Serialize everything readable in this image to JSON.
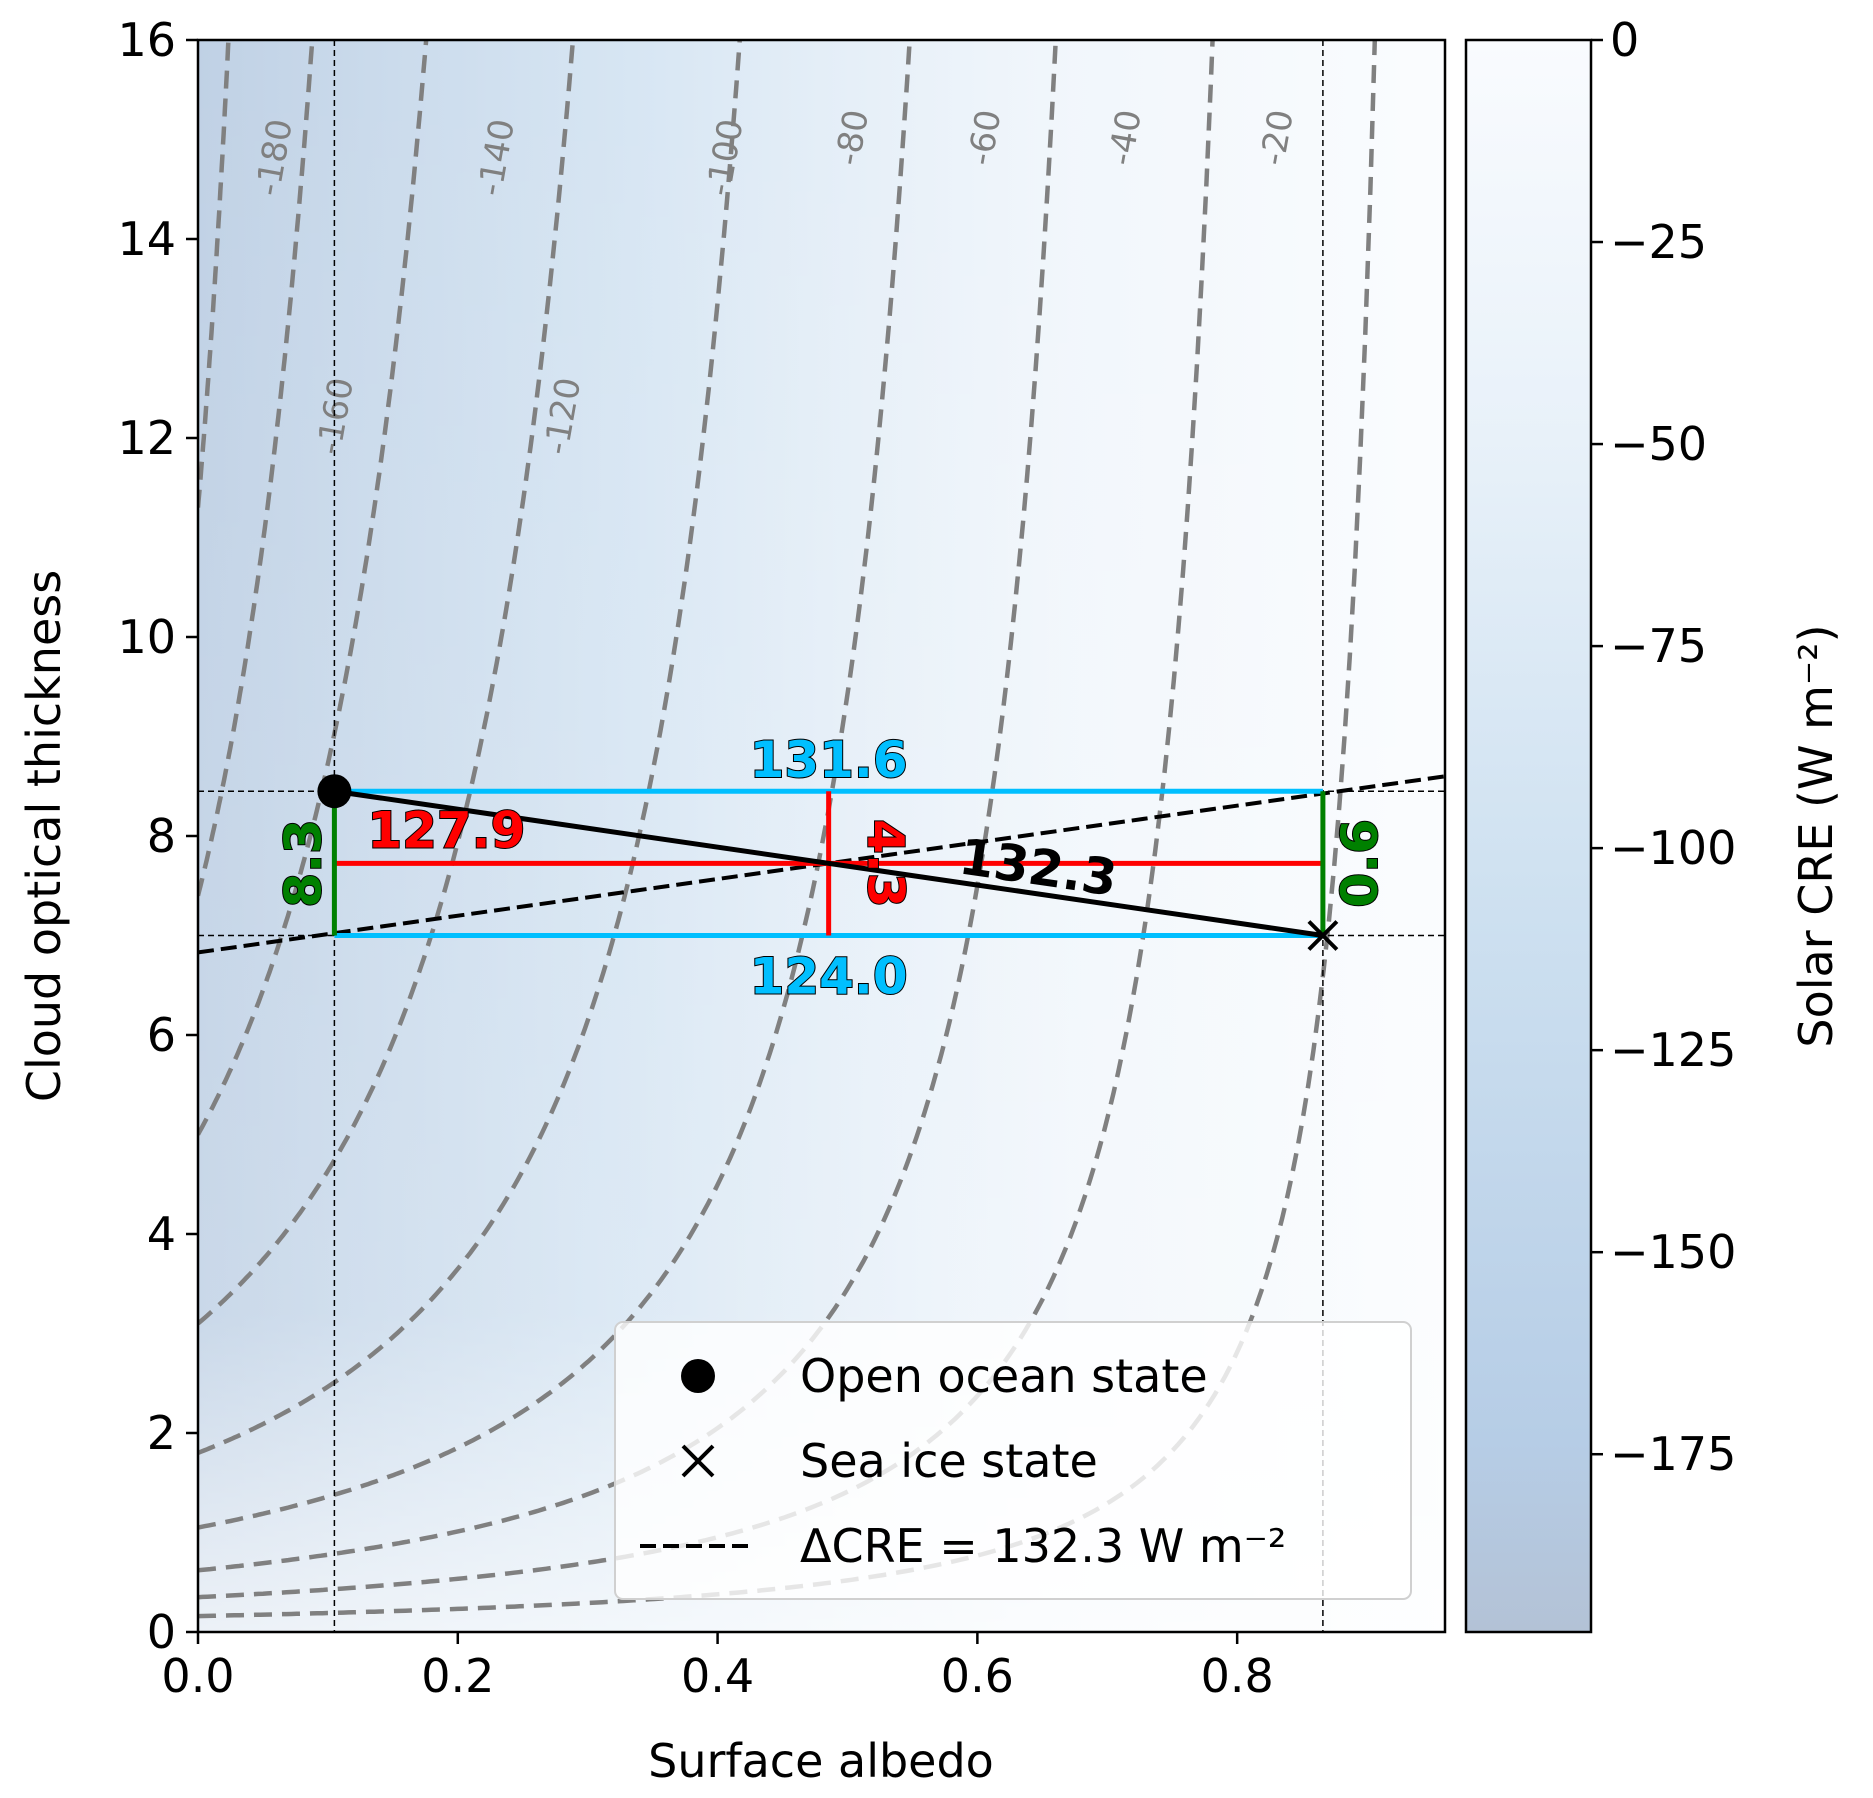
{
  "chart_data": {
    "type": "contour",
    "xlabel": "Surface albedo",
    "ylabel": "Cloud optical thickness",
    "xlim": [
      0,
      0.96
    ],
    "ylim": [
      0,
      16
    ],
    "xticks": [
      "0.0",
      "0.2",
      "0.4",
      "0.6",
      "0.8"
    ],
    "yticks": [
      "0",
      "2",
      "4",
      "6",
      "8",
      "10",
      "12",
      "14",
      "16"
    ],
    "colorbar": {
      "label": "Solar CRE (W m⁻²)",
      "ticks": [
        "0",
        "−25",
        "−50",
        "−75",
        "−100",
        "−125",
        "−150",
        "−175"
      ],
      "range": [
        -197,
        0
      ]
    },
    "contours": [
      {
        "level": -180,
        "label": "-180"
      },
      {
        "level": -160,
        "label": "-160"
      },
      {
        "level": -140,
        "label": "-140"
      },
      {
        "level": -120,
        "label": "-120"
      },
      {
        "level": -100,
        "label": "-100"
      },
      {
        "level": -80,
        "label": "-80"
      },
      {
        "level": -60,
        "label": "-60"
      },
      {
        "level": -40,
        "label": "-40"
      },
      {
        "level": -20,
        "label": "-20"
      }
    ],
    "open_ocean_state": {
      "albedo": 0.105,
      "tau": 8.45
    },
    "sea_ice_state": {
      "albedo": 0.866,
      "tau": 7.0
    },
    "delta_cre_line": {
      "albedo": [
        0.0,
        0.96
      ],
      "tau": [
        6.83,
        8.6
      ]
    },
    "annotations": {
      "top": "131.6",
      "bottom": "124.0",
      "left": "8.3",
      "right": "0.6",
      "horizontal_mid": "127.9",
      "vertical_mid": "4.3",
      "diagonal": "132.3"
    },
    "legend": {
      "position": "lower-right",
      "items": [
        {
          "marker": "circle",
          "label": "Open ocean state"
        },
        {
          "marker": "x",
          "label": "Sea ice state"
        },
        {
          "marker": "dashed-line",
          "label": "ΔCRE = 132.3 W m⁻²"
        }
      ]
    },
    "colors": {
      "contour": "#808080",
      "cyan": "#00bfff",
      "red": "#ff0000",
      "green": "#008000",
      "black": "#000000"
    }
  }
}
